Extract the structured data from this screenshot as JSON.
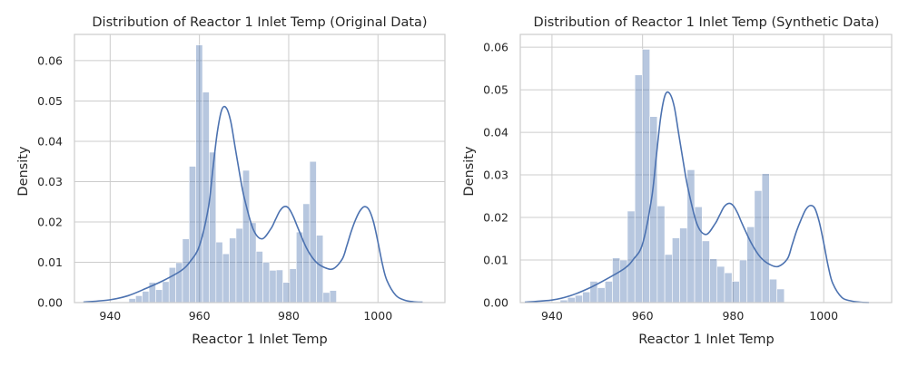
{
  "chart_data": [
    {
      "type": "histogram",
      "title": "Distribution of Reactor 1 Inlet Temp (Original Data)",
      "xlabel": "Reactor 1 Inlet Temp",
      "ylabel": "Density",
      "xlim": [
        932,
        1015
      ],
      "ylim": [
        0,
        0.0665
      ],
      "xticks": [
        940,
        960,
        980,
        1000
      ],
      "yticks": [
        0.0,
        0.01,
        0.02,
        0.03,
        0.04,
        0.05,
        0.06
      ],
      "ytick_labels": [
        "0.00",
        "0.01",
        "0.02",
        "0.03",
        "0.04",
        "0.05",
        "0.06"
      ],
      "grid": true,
      "bins": {
        "start": 944.2,
        "width": 1.5,
        "values": [
          0.001,
          0.0017,
          0.0028,
          0.005,
          0.0032,
          0.0052,
          0.0087,
          0.0099,
          0.0158,
          0.0338,
          0.0639,
          0.0522,
          0.0373,
          0.015,
          0.0121,
          0.016,
          0.0184,
          0.0328,
          0.0198,
          0.0127,
          0.01,
          0.008,
          0.0081,
          0.005,
          0.0084,
          0.0175,
          0.0245,
          0.035,
          0.0167,
          0.0025,
          0.003
        ]
      },
      "kde": {
        "x": [
          934,
          940,
          944,
          948,
          952,
          956,
          958,
          960,
          962,
          963,
          964,
          965,
          966,
          967,
          968,
          969,
          970,
          972,
          974,
          976,
          977,
          978,
          979,
          980,
          981,
          982,
          984,
          986,
          988,
          990,
          992,
          993,
          994,
          995,
          996,
          997,
          998,
          999,
          1000,
          1001,
          1002,
          1004,
          1006,
          1008,
          1010
        ],
        "y": [
          0.0001,
          0.0007,
          0.0017,
          0.0035,
          0.0055,
          0.008,
          0.0103,
          0.0141,
          0.0235,
          0.033,
          0.0422,
          0.0478,
          0.0483,
          0.045,
          0.0385,
          0.032,
          0.0262,
          0.0183,
          0.0158,
          0.0183,
          0.0205,
          0.0227,
          0.0238,
          0.0234,
          0.0214,
          0.0187,
          0.0135,
          0.0102,
          0.0087,
          0.0084,
          0.0108,
          0.014,
          0.0176,
          0.0206,
          0.0228,
          0.0238,
          0.023,
          0.02,
          0.015,
          0.0095,
          0.0055,
          0.0018,
          0.0006,
          0.0002,
          0.0001
        ]
      }
    },
    {
      "type": "histogram",
      "title": "Distribution of Reactor 1 Inlet Temp (Synthetic Data)",
      "xlabel": "Reactor 1 Inlet Temp",
      "ylabel": "Density",
      "xlim": [
        933,
        1015
      ],
      "ylim": [
        0,
        0.063
      ],
      "xticks": [
        940,
        960,
        980,
        1000
      ],
      "yticks": [
        0.0,
        0.01,
        0.02,
        0.03,
        0.04,
        0.05,
        0.06
      ],
      "ytick_labels": [
        "0.00",
        "0.01",
        "0.02",
        "0.03",
        "0.04",
        "0.05",
        "0.06"
      ],
      "grid": true,
      "bins": {
        "start": 941.8,
        "width": 1.65,
        "values": [
          0.0006,
          0.0012,
          0.0017,
          0.0025,
          0.005,
          0.0035,
          0.005,
          0.0105,
          0.01,
          0.0215,
          0.0535,
          0.0595,
          0.0437,
          0.0227,
          0.0113,
          0.0152,
          0.0175,
          0.0312,
          0.0225,
          0.0145,
          0.0103,
          0.0085,
          0.007,
          0.005,
          0.01,
          0.0178,
          0.0263,
          0.0303,
          0.0055,
          0.0032
        ]
      },
      "kde": {
        "x": [
          934,
          940,
          944,
          948,
          952,
          956,
          958,
          960,
          962,
          963,
          964,
          965,
          966,
          967,
          968,
          969,
          970,
          972,
          974,
          976,
          977,
          978,
          979,
          980,
          981,
          982,
          984,
          986,
          988,
          990,
          992,
          993,
          994,
          995,
          996,
          997,
          998,
          999,
          1000,
          1001,
          1002,
          1004,
          1006,
          1008,
          1010
        ],
        "y": [
          0.0001,
          0.0006,
          0.0016,
          0.0033,
          0.0055,
          0.008,
          0.0102,
          0.0138,
          0.0245,
          0.034,
          0.0435,
          0.0488,
          0.0491,
          0.046,
          0.0395,
          0.033,
          0.027,
          0.0185,
          0.016,
          0.0185,
          0.0205,
          0.0225,
          0.0233,
          0.0228,
          0.021,
          0.0185,
          0.014,
          0.0107,
          0.009,
          0.0085,
          0.0103,
          0.0135,
          0.0168,
          0.0195,
          0.0218,
          0.0228,
          0.0222,
          0.019,
          0.014,
          0.0085,
          0.0045,
          0.0012,
          0.0004,
          0.0001,
          0.0
        ]
      }
    }
  ]
}
